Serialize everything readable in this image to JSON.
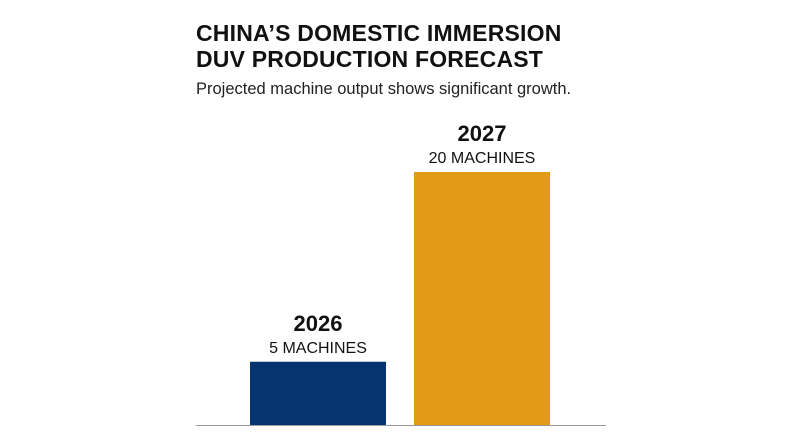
{
  "title_lines": [
    "CHINA’S DOMESTIC IMMERSION",
    "DUV PRODUCTION FORECAST"
  ],
  "subtitle": "Projected machine output shows significant growth.",
  "colors": {
    "bar_2026": "#06346f",
    "bar_2027": "#e39a17",
    "baseline": "#9a9a9a"
  },
  "chart_data": {
    "type": "bar",
    "categories": [
      "2026",
      "2027"
    ],
    "values": [
      5,
      20
    ],
    "value_labels": [
      "5 MACHINES",
      "20 MACHINES"
    ],
    "title": "CHINA’S DOMESTIC IMMERSION DUV PRODUCTION FORECAST",
    "subtitle": "Projected machine output shows significant growth.",
    "xlabel": "",
    "ylabel": "",
    "ylim": [
      0,
      20
    ],
    "grid": false,
    "legend": "none"
  }
}
